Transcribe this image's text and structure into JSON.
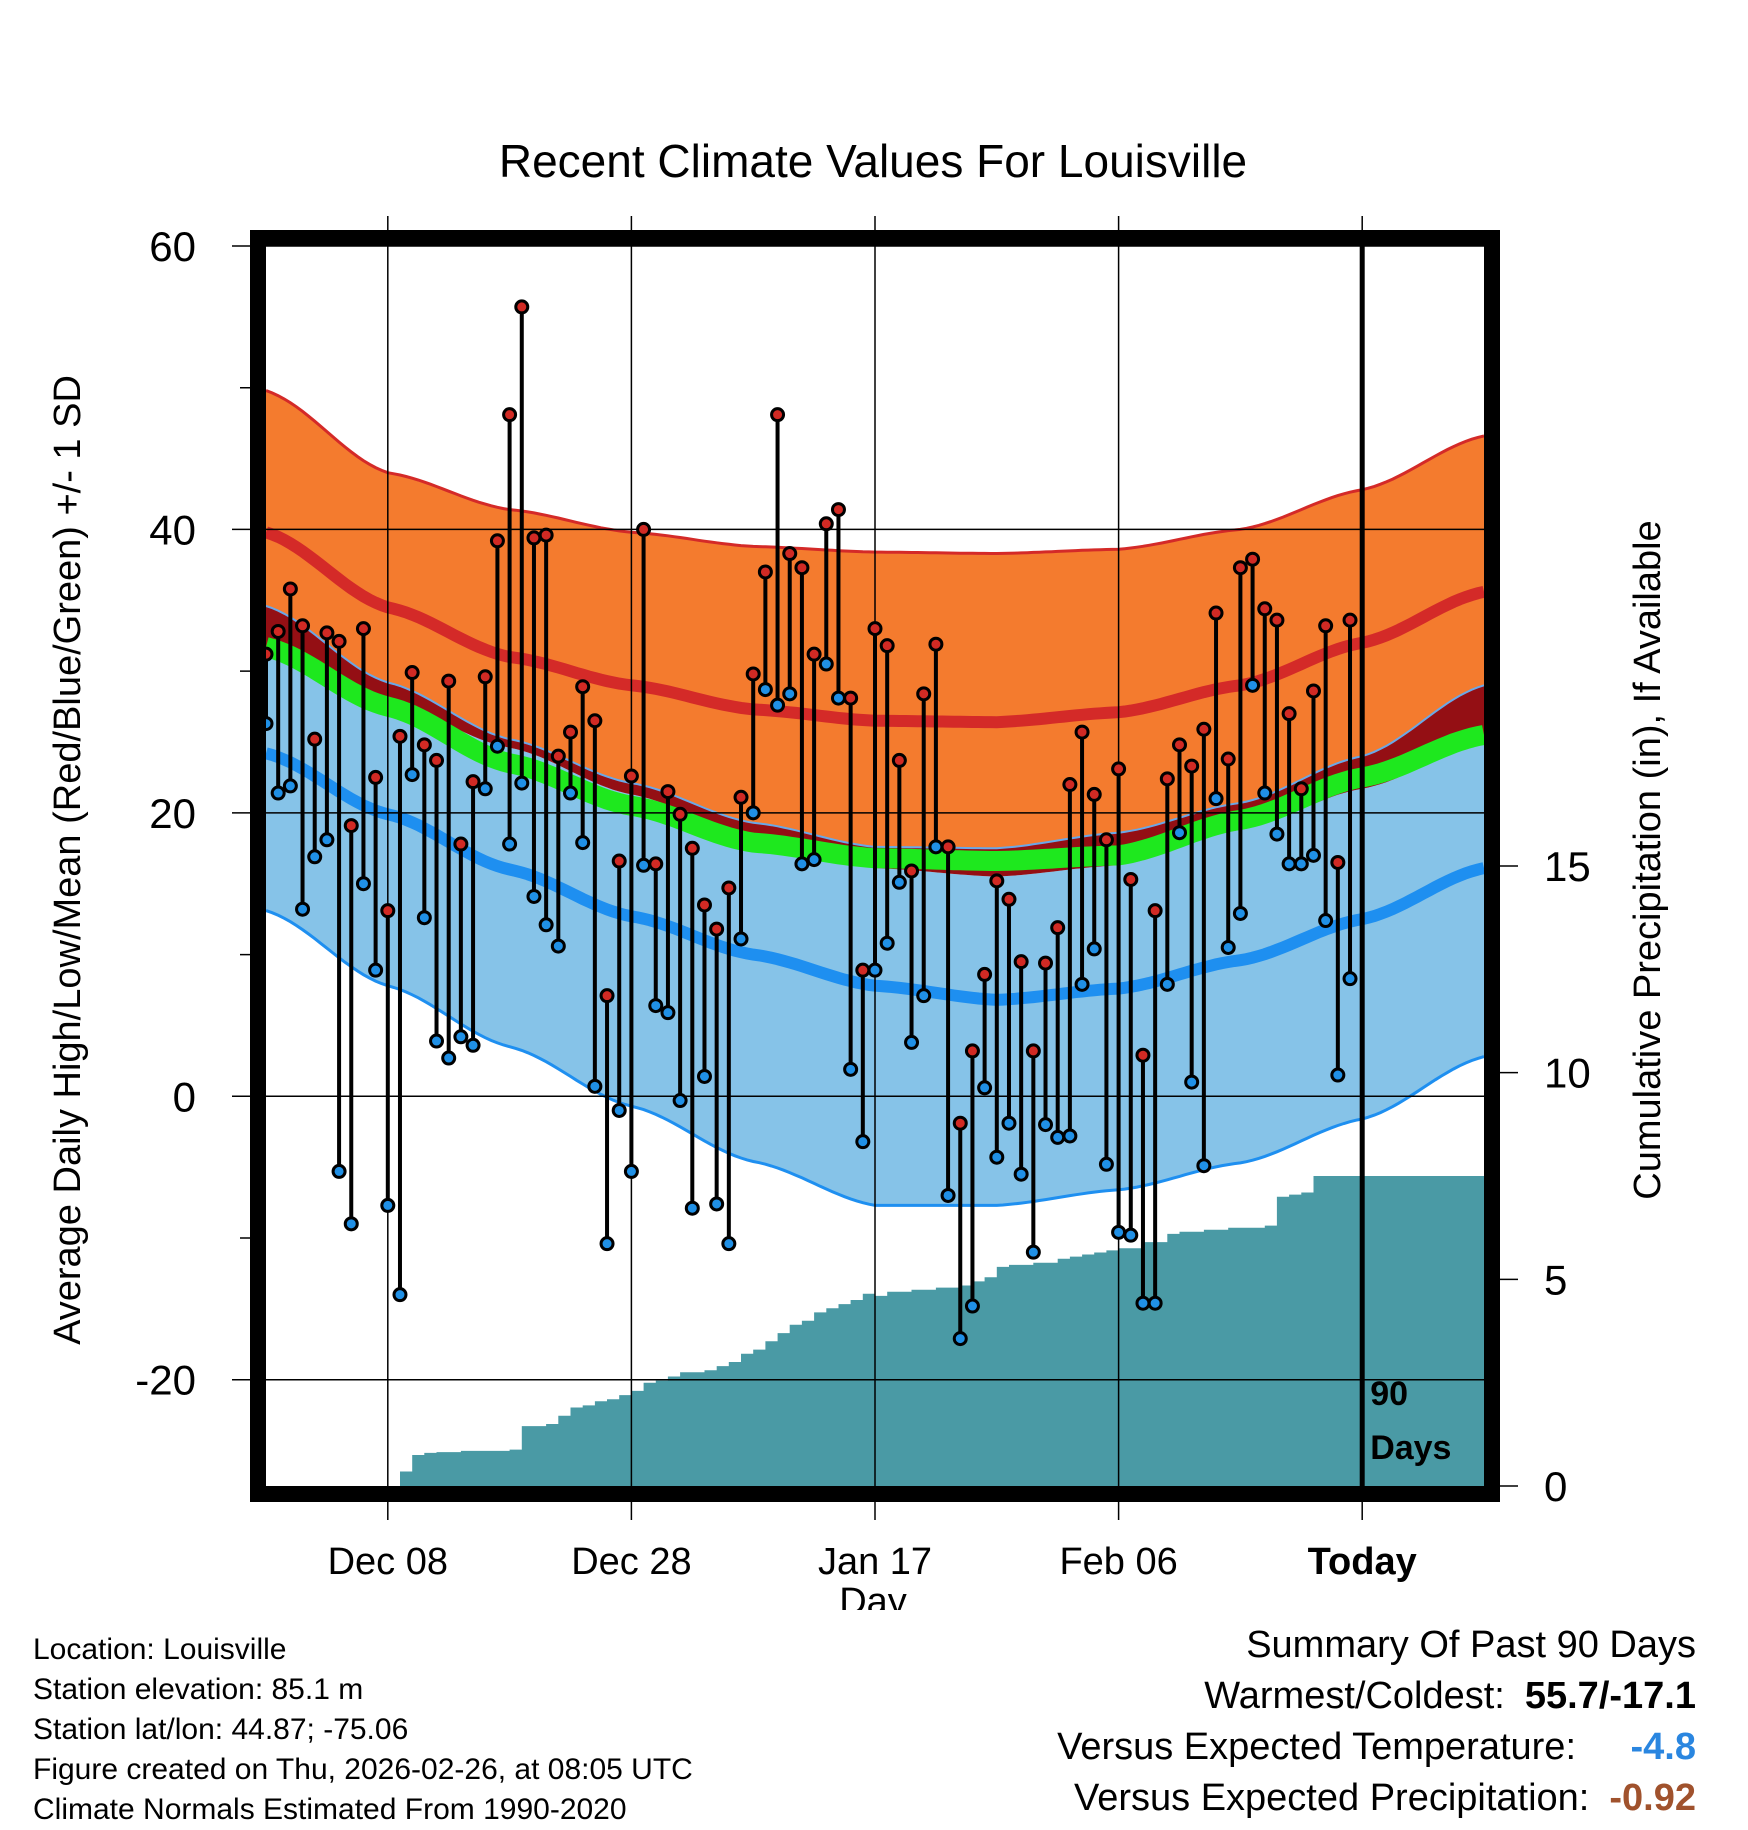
{
  "chart_data": {
    "type": "line",
    "title": "Recent Climate Values For Louisville",
    "xlabel": "Day",
    "ylabel": "Average Daily High/Low/Mean (Red/Blue/Green) +/- 1 SD",
    "y2label": "Cumulative Precipitation (in), If Available",
    "ylim": [
      -27.5,
      60
    ],
    "y2lim": [
      0,
      15
    ],
    "yticks": [
      -20,
      0,
      20,
      40,
      60
    ],
    "y2ticks": [
      0,
      5,
      10,
      15
    ],
    "xticks": [
      {
        "day": 10,
        "label": "Dec 08"
      },
      {
        "day": 30,
        "label": "Dec 28"
      },
      {
        "day": 50,
        "label": "Jan 17"
      },
      {
        "day": 70,
        "label": "Feb 06"
      },
      {
        "day": 90,
        "label": "Today"
      }
    ],
    "xlim": [
      0,
      100
    ],
    "today_day": 90,
    "today_label_line1": "90",
    "today_label_line2": "Days",
    "colors": {
      "high_band": "#f47b2e",
      "high_mean": "#d42a28",
      "mean_band": "#940f14",
      "mean_line": "#1ee81e",
      "low_band": "#86c3e8",
      "low_mean": "#1e8ff0",
      "precip": "#4a9aa5",
      "high_marker": "#d12a24",
      "low_marker": "#2090e6"
    },
    "normals": {
      "days": [
        0,
        10,
        20,
        30,
        40,
        50,
        60,
        70,
        80,
        90,
        100
      ],
      "high_mean": [
        39.8,
        34.5,
        31.0,
        29.0,
        27.3,
        26.5,
        26.4,
        27.1,
        29.0,
        32.0,
        35.6
      ],
      "high_sd_upper": [
        49.8,
        44.0,
        41.4,
        39.8,
        38.8,
        38.4,
        38.3,
        38.6,
        40.0,
        42.8,
        46.6
      ],
      "high_sd_lower": [
        34.6,
        29.2,
        25.2,
        22.1,
        19.3,
        17.6,
        17.5,
        18.6,
        20.7,
        24.0,
        29.0
      ],
      "low_mean": [
        24.2,
        19.9,
        16.0,
        12.7,
        10.0,
        7.8,
        6.8,
        7.6,
        9.6,
        12.5,
        16.1
      ],
      "low_sd_upper": [
        31.6,
        27.8,
        24.6,
        21.3,
        18.3,
        16.1,
        15.5,
        16.3,
        18.8,
        21.7,
        24.9
      ],
      "low_sd_lower": [
        13.1,
        7.8,
        3.5,
        -0.7,
        -4.6,
        -7.7,
        -7.7,
        -6.6,
        -4.7,
        -1.6,
        2.8
      ],
      "mean": [
        31.7,
        27.5,
        23.5,
        20.5,
        17.9,
        16.8,
        16.6,
        17.0,
        19.5,
        22.5,
        25.5
      ]
    },
    "series": [
      {
        "name": "Daily High",
        "values": [
          31.2,
          32.8,
          35.8,
          33.2,
          25.2,
          32.7,
          32.1,
          19.1,
          33.0,
          22.5,
          13.1,
          25.4,
          29.9,
          24.8,
          23.7,
          29.3,
          17.8,
          22.2,
          29.6,
          39.2,
          48.1,
          55.7,
          39.4,
          39.6,
          24.0,
          25.7,
          28.9,
          26.5,
          7.1,
          16.6,
          22.6,
          40.0,
          16.4,
          21.5,
          19.9,
          17.5,
          13.5,
          11.8,
          14.7,
          21.1,
          29.8,
          37.0,
          48.1,
          38.3,
          37.3,
          31.2,
          40.4,
          41.4,
          28.1,
          8.9,
          33.0,
          31.8,
          23.7,
          15.9,
          28.4,
          31.9,
          17.6,
          -1.9,
          3.2,
          8.6,
          15.2,
          13.9,
          9.5,
          3.2,
          9.4,
          11.9,
          22.0,
          25.7,
          21.3,
          18.1,
          23.1,
          15.3,
          2.9,
          13.1,
          22.4,
          24.8,
          23.3,
          25.9,
          34.1,
          23.8,
          37.3,
          37.9,
          34.4,
          33.6,
          27.0,
          21.7,
          28.6,
          33.2,
          16.5,
          33.6
        ]
      },
      {
        "name": "Daily Low",
        "values": [
          26.3,
          21.4,
          21.9,
          13.2,
          16.9,
          18.1,
          -5.3,
          -9.0,
          15.0,
          8.9,
          -7.7,
          -14.0,
          22.7,
          12.6,
          3.9,
          2.7,
          4.2,
          3.6,
          21.7,
          24.7,
          17.8,
          22.1,
          14.1,
          12.1,
          10.6,
          21.4,
          17.9,
          0.7,
          -10.4,
          -1.0,
          -5.3,
          16.3,
          6.4,
          5.9,
          -0.3,
          -7.9,
          1.4,
          -7.6,
          -10.4,
          11.1,
          20.0,
          28.7,
          27.6,
          28.4,
          16.4,
          16.7,
          30.5,
          28.1,
          1.9,
          -3.2,
          8.9,
          10.8,
          15.1,
          3.8,
          7.1,
          17.6,
          -7.0,
          -17.1,
          -14.8,
          0.6,
          -4.3,
          -1.9,
          -5.5,
          -11.0,
          -2.0,
          -2.9,
          -2.8,
          7.9,
          10.4,
          -4.8,
          -9.6,
          -9.8,
          -14.6,
          -14.6,
          7.9,
          18.6,
          1.0,
          -4.9,
          21.0,
          10.5,
          12.9,
          29.0,
          21.4,
          18.5,
          16.4,
          16.4,
          17.0,
          12.4,
          1.5,
          8.3
        ]
      }
    ],
    "precip_cumulative": {
      "days": [
        0,
        10,
        11,
        12,
        13,
        14,
        15,
        16,
        17,
        18,
        19,
        20,
        21,
        22,
        23,
        24,
        25,
        26,
        27,
        28,
        29,
        30,
        31,
        32,
        33,
        34,
        35,
        36,
        37,
        38,
        39,
        40,
        41,
        42,
        43,
        44,
        45,
        46,
        47,
        48,
        49,
        50,
        51,
        52,
        53,
        54,
        55,
        56,
        57,
        58,
        59,
        60,
        61,
        62,
        63,
        64,
        65,
        66,
        67,
        68,
        69,
        70,
        71,
        72,
        73,
        74,
        75,
        76,
        77,
        78,
        79,
        80,
        81,
        82,
        83,
        84,
        85,
        86,
        87,
        88,
        89,
        90,
        100
      ],
      "values": [
        0,
        0,
        0.35,
        0.75,
        0.8,
        0.82,
        0.82,
        0.85,
        0.85,
        0.85,
        0.85,
        0.88,
        1.45,
        1.45,
        1.5,
        1.7,
        1.9,
        1.95,
        2.05,
        2.1,
        2.2,
        2.3,
        2.5,
        2.55,
        2.65,
        2.75,
        2.75,
        2.8,
        2.9,
        3.0,
        3.2,
        3.3,
        3.5,
        3.7,
        3.9,
        4.0,
        4.2,
        4.3,
        4.4,
        4.5,
        4.65,
        4.6,
        4.7,
        4.7,
        4.75,
        4.75,
        4.8,
        4.8,
        4.85,
        4.95,
        5.05,
        5.3,
        5.35,
        5.35,
        5.4,
        5.4,
        5.5,
        5.55,
        5.6,
        5.65,
        5.7,
        5.75,
        5.75,
        5.9,
        5.9,
        6.1,
        6.15,
        6.15,
        6.2,
        6.2,
        6.25,
        6.25,
        6.25,
        6.3,
        7.0,
        7.05,
        7.1,
        7.5,
        7.5,
        7.5,
        7.5,
        7.5,
        7.5
      ]
    },
    "summary": {
      "heading": "Summary Of Past 90 Days",
      "warm_cold_label": "Warmest/Coldest:",
      "warm_cold_value": "55.7/-17.1",
      "temp_label": "Versus Expected Temperature:",
      "temp_value": "-4.8",
      "temp_color": "#2a86e0",
      "precip_label": "Versus Expected Precipitation:",
      "precip_value": "-0.92",
      "precip_color": "#a0522d"
    }
  },
  "footer": {
    "location": "Location: Louisville",
    "elevation": "Station elevation: 85.1 m",
    "latlon": "Station lat/lon: 44.87; -75.06",
    "created": "Figure created on Thu, 2026-02-26, at 08:05 UTC",
    "normals": "Climate Normals Estimated From 1990-2020"
  }
}
